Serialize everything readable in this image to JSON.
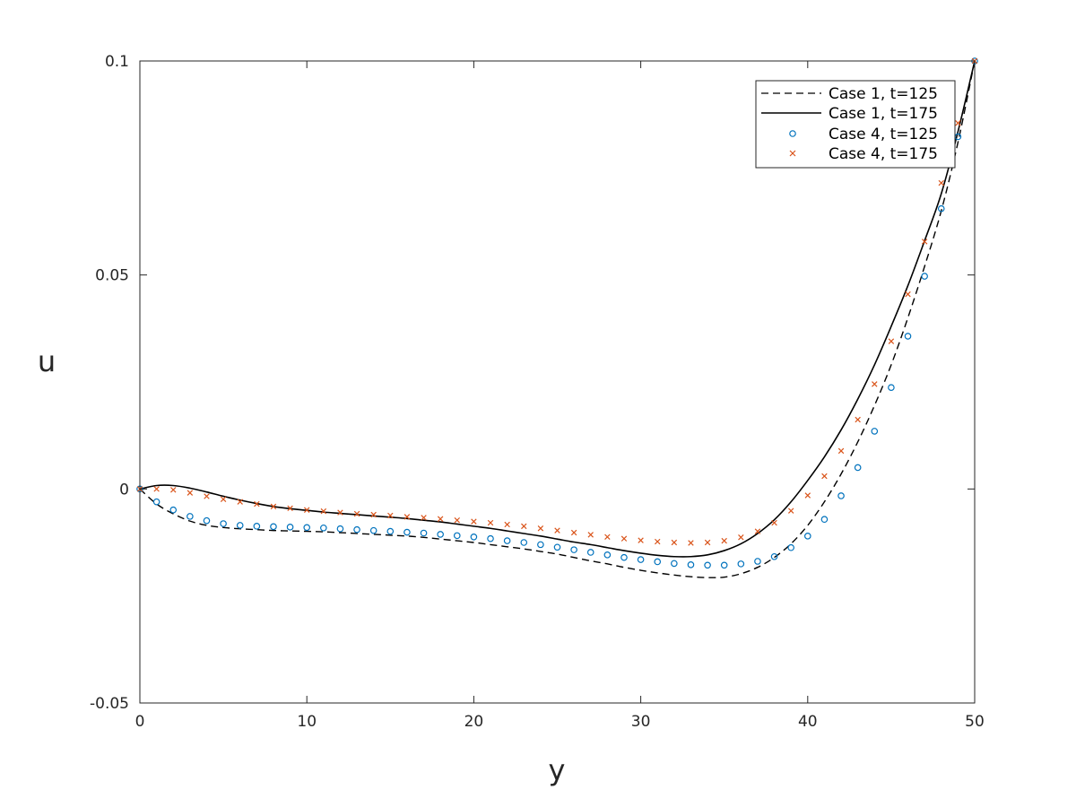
{
  "chart_data": {
    "type": "line",
    "title": "",
    "xlabel": "y",
    "ylabel": "u",
    "xlim": [
      0,
      50
    ],
    "ylim": [
      -0.05,
      0.1
    ],
    "xticks": [
      0,
      10,
      20,
      30,
      40,
      50
    ],
    "xtick_labels": [
      "0",
      "10",
      "20",
      "30",
      "40",
      "50"
    ],
    "yticks": [
      -0.05,
      0,
      0.05,
      0.1
    ],
    "ytick_labels": [
      "-0.05",
      "0",
      "0.05",
      "0.1"
    ],
    "grid": false,
    "legend_position": "top-right",
    "series": [
      {
        "name": "Case 1, t=125",
        "style": "dashed-line",
        "color": "#000000",
        "x": [
          0,
          1,
          2,
          3,
          4,
          5,
          6,
          7,
          8,
          9,
          10,
          11,
          12,
          13,
          14,
          15,
          16,
          17,
          18,
          19,
          20,
          21,
          22,
          23,
          24,
          25,
          26,
          27,
          28,
          29,
          30,
          31,
          32,
          33,
          34,
          35,
          36,
          37,
          38,
          39,
          40,
          41,
          42,
          43,
          44,
          45,
          46,
          47,
          48,
          49,
          50
        ],
        "y": [
          0,
          -0.0035,
          -0.0058,
          -0.0075,
          -0.0085,
          -0.009,
          -0.0093,
          -0.0095,
          -0.0097,
          -0.0098,
          -0.0099,
          -0.01,
          -0.0102,
          -0.0104,
          -0.0106,
          -0.0108,
          -0.011,
          -0.0113,
          -0.0117,
          -0.0121,
          -0.0125,
          -0.013,
          -0.0135,
          -0.014,
          -0.0146,
          -0.0152,
          -0.016,
          -0.0168,
          -0.0175,
          -0.0183,
          -0.019,
          -0.0196,
          -0.0201,
          -0.0205,
          -0.0207,
          -0.0206,
          -0.0198,
          -0.0183,
          -0.016,
          -0.0128,
          -0.0085,
          -0.003,
          0.0035,
          0.011,
          0.0195,
          0.029,
          0.04,
          0.052,
          0.065,
          0.081,
          0.1
        ]
      },
      {
        "name": "Case 1, t=175",
        "style": "solid-line",
        "color": "#000000",
        "x": [
          0,
          1,
          2,
          3,
          4,
          5,
          6,
          7,
          8,
          9,
          10,
          11,
          12,
          13,
          14,
          15,
          16,
          17,
          18,
          19,
          20,
          21,
          22,
          23,
          24,
          25,
          26,
          27,
          28,
          29,
          30,
          31,
          32,
          33,
          34,
          35,
          36,
          37,
          38,
          39,
          40,
          41,
          42,
          43,
          44,
          45,
          46,
          47,
          48,
          49,
          50
        ],
        "y": [
          0,
          0.0008,
          0.0008,
          0.0002,
          -0.0007,
          -0.0017,
          -0.0026,
          -0.0034,
          -0.0041,
          -0.0046,
          -0.005,
          -0.0054,
          -0.0057,
          -0.006,
          -0.0063,
          -0.0066,
          -0.0069,
          -0.0073,
          -0.0077,
          -0.0082,
          -0.0087,
          -0.0092,
          -0.0098,
          -0.0104,
          -0.011,
          -0.0117,
          -0.0124,
          -0.013,
          -0.0137,
          -0.0144,
          -0.015,
          -0.0155,
          -0.0158,
          -0.0158,
          -0.0154,
          -0.0144,
          -0.0128,
          -0.0104,
          -0.0072,
          -0.003,
          0.002,
          0.0075,
          0.0138,
          0.021,
          0.029,
          0.038,
          0.0475,
          0.058,
          0.069,
          0.0835,
          0.1
        ]
      },
      {
        "name": "Case 4, t=125",
        "style": "circle-markers",
        "color": "#0072BD",
        "x": [
          0,
          1,
          2,
          3,
          4,
          5,
          6,
          7,
          8,
          9,
          10,
          11,
          12,
          13,
          14,
          15,
          16,
          17,
          18,
          19,
          20,
          21,
          22,
          23,
          24,
          25,
          26,
          27,
          28,
          29,
          30,
          31,
          32,
          33,
          34,
          35,
          36,
          37,
          38,
          39,
          40,
          41,
          42,
          43,
          44,
          45,
          46,
          47,
          48,
          49,
          50
        ],
        "y": [
          0,
          -0.003,
          -0.0049,
          -0.0064,
          -0.0074,
          -0.0081,
          -0.0085,
          -0.0087,
          -0.0088,
          -0.0089,
          -0.009,
          -0.0091,
          -0.0093,
          -0.0095,
          -0.0097,
          -0.0099,
          -0.0101,
          -0.0103,
          -0.0106,
          -0.0109,
          -0.0112,
          -0.0116,
          -0.0121,
          -0.0125,
          -0.013,
          -0.0136,
          -0.0142,
          -0.0148,
          -0.0154,
          -0.016,
          -0.0165,
          -0.017,
          -0.0174,
          -0.0177,
          -0.0178,
          -0.0178,
          -0.0175,
          -0.0169,
          -0.0158,
          -0.0137,
          -0.011,
          -0.0071,
          -0.0016,
          0.005,
          0.0135,
          0.0237,
          0.0357,
          0.0497,
          0.0655,
          0.0823,
          0.1
        ]
      },
      {
        "name": "Case 4, t=175",
        "style": "x-markers",
        "color": "#D95319",
        "x": [
          0,
          1,
          2,
          3,
          4,
          5,
          6,
          7,
          8,
          9,
          10,
          11,
          12,
          13,
          14,
          15,
          16,
          17,
          18,
          19,
          20,
          21,
          22,
          23,
          24,
          25,
          26,
          27,
          28,
          29,
          30,
          31,
          32,
          33,
          34,
          35,
          36,
          37,
          38,
          39,
          40,
          41,
          42,
          43,
          44,
          45,
          46,
          47,
          48,
          49,
          50
        ],
        "y": [
          0,
          0,
          -0.0002,
          -0.0009,
          -0.0017,
          -0.0024,
          -0.003,
          -0.0035,
          -0.0041,
          -0.0045,
          -0.0049,
          -0.0052,
          -0.0055,
          -0.0058,
          -0.006,
          -0.0062,
          -0.0065,
          -0.0067,
          -0.007,
          -0.0073,
          -0.0076,
          -0.0079,
          -0.0083,
          -0.0087,
          -0.0092,
          -0.0097,
          -0.0102,
          -0.0107,
          -0.0112,
          -0.0116,
          -0.012,
          -0.0123,
          -0.0125,
          -0.0126,
          -0.0125,
          -0.0121,
          -0.0113,
          -0.0099,
          -0.0079,
          -0.0051,
          -0.0015,
          0.003,
          0.0089,
          0.0162,
          0.0245,
          0.0345,
          0.0455,
          0.0578,
          0.0715,
          0.0855,
          0.1
        ]
      }
    ]
  }
}
